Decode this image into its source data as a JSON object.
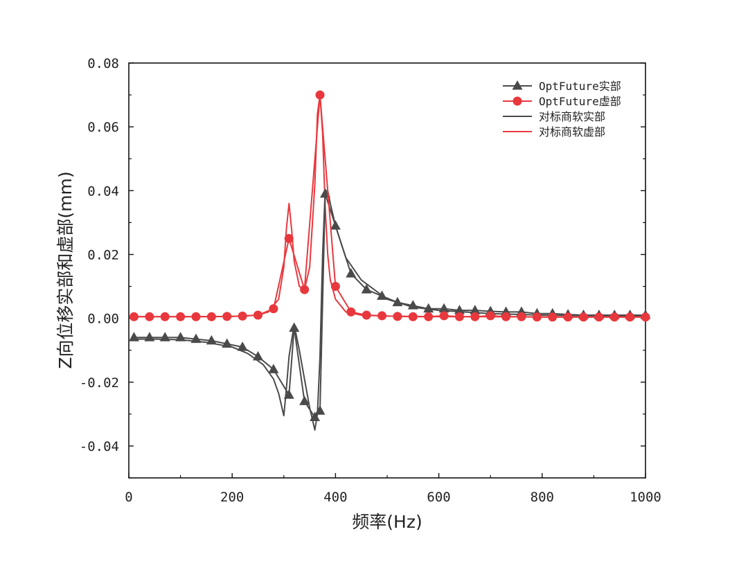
{
  "chart_data": {
    "type": "line",
    "xlabel": "频率(Hz)",
    "ylabel": "Z向位移实部和虚部(mm)",
    "xlim": [
      0,
      1000
    ],
    "ylim": [
      -0.05,
      0.08
    ],
    "xticks": [
      0,
      200,
      400,
      600,
      800,
      1000
    ],
    "xtick_labels": [
      "0",
      "200",
      "400",
      "600",
      "800",
      "1000"
    ],
    "yticks": [
      -0.04,
      -0.02,
      0.0,
      0.02,
      0.04,
      0.06,
      0.08
    ],
    "ytick_labels": [
      "-0.04",
      "-0.02",
      "0.00",
      "0.02",
      "0.04",
      "0.06",
      "0.08"
    ],
    "grid": false,
    "legend_position": "top-right",
    "series": [
      {
        "name": "OptFuture实部",
        "color": "#4a4a4a",
        "marker": "triangle",
        "x": [
          10,
          40,
          70,
          100,
          130,
          160,
          190,
          220,
          250,
          280,
          310,
          320,
          340,
          360,
          370,
          380,
          400,
          430,
          460,
          490,
          520,
          550,
          580,
          610,
          640,
          670,
          700,
          730,
          760,
          790,
          820,
          850,
          880,
          910,
          940,
          970,
          1000
        ],
        "y": [
          -0.006,
          -0.006,
          -0.006,
          -0.006,
          -0.0065,
          -0.007,
          -0.008,
          -0.009,
          -0.012,
          -0.016,
          -0.024,
          -0.003,
          -0.026,
          -0.031,
          -0.029,
          0.039,
          0.029,
          0.014,
          0.009,
          0.007,
          0.005,
          0.004,
          0.003,
          0.003,
          0.0025,
          0.0025,
          0.0022,
          0.002,
          0.002,
          0.0015,
          0.0015,
          0.0012,
          0.001,
          0.001,
          0.001,
          0.001,
          0.001
        ]
      },
      {
        "name": "OptFuture虚部",
        "color": "#e8383d",
        "marker": "circle",
        "x": [
          10,
          40,
          70,
          100,
          130,
          160,
          190,
          220,
          250,
          280,
          310,
          340,
          370,
          400,
          430,
          460,
          490,
          520,
          550,
          580,
          610,
          640,
          670,
          700,
          730,
          760,
          790,
          820,
          850,
          880,
          910,
          940,
          970,
          1000
        ],
        "y": [
          0.0005,
          0.0005,
          0.0005,
          0.0005,
          0.0005,
          0.0005,
          0.0006,
          0.0007,
          0.001,
          0.003,
          0.025,
          0.009,
          0.07,
          0.01,
          0.002,
          0.001,
          0.0008,
          0.0006,
          0.0005,
          0.0005,
          0.0008,
          0.0005,
          0.0005,
          0.0008,
          0.0005,
          0.0005,
          0.0004,
          0.0004,
          0.0004,
          0.0004,
          0.0004,
          0.0004,
          0.0004,
          0.0004
        ]
      },
      {
        "name": "对标商软实部",
        "color": "#4a4a4a",
        "marker": "none",
        "x": [
          10,
          50,
          100,
          150,
          200,
          230,
          260,
          280,
          290,
          300,
          305,
          310,
          320,
          330,
          340,
          350,
          360,
          365,
          370,
          375,
          380,
          385,
          390,
          400,
          420,
          450,
          500,
          550,
          600,
          700,
          800,
          900,
          1000
        ],
        "y": [
          -0.0065,
          -0.0065,
          -0.0067,
          -0.0075,
          -0.009,
          -0.011,
          -0.0145,
          -0.019,
          -0.0235,
          -0.0305,
          -0.022,
          -0.012,
          -0.002,
          -0.01,
          -0.019,
          -0.028,
          -0.035,
          -0.03,
          -0.012,
          0.02,
          0.04,
          0.04,
          0.036,
          0.029,
          0.019,
          0.012,
          0.006,
          0.0035,
          0.0025,
          0.0015,
          0.001,
          0.0008,
          0.0007
        ]
      },
      {
        "name": "对标商软虚部",
        "color": "#e8383d",
        "marker": "none",
        "x": [
          10,
          100,
          200,
          250,
          270,
          290,
          300,
          305,
          310,
          315,
          320,
          330,
          340,
          350,
          360,
          365,
          370,
          375,
          380,
          385,
          390,
          400,
          420,
          450,
          500,
          600,
          700,
          800,
          900,
          1000
        ],
        "y": [
          0.0005,
          0.0005,
          0.0006,
          0.001,
          0.002,
          0.006,
          0.016,
          0.028,
          0.036,
          0.028,
          0.018,
          0.01,
          0.009,
          0.016,
          0.042,
          0.064,
          0.07,
          0.058,
          0.035,
          0.02,
          0.012,
          0.006,
          0.002,
          0.001,
          0.0007,
          0.0005,
          0.0005,
          0.0004,
          0.0004,
          0.0004
        ]
      }
    ]
  }
}
